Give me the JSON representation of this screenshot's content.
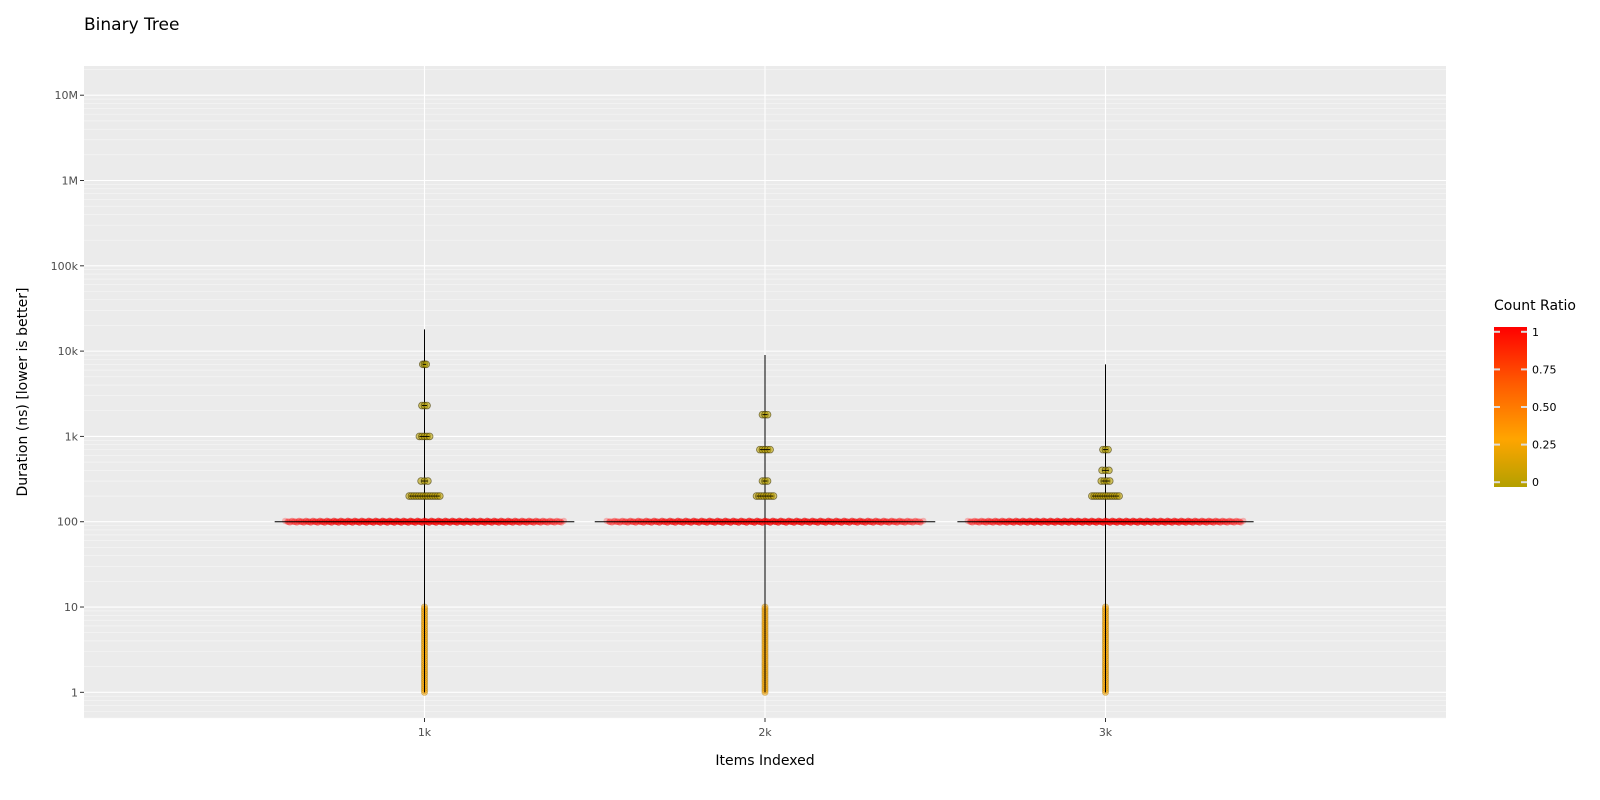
{
  "chart_data": {
    "type": "violin",
    "title": "Binary Tree",
    "xlabel": "Items Indexed",
    "ylabel": "Duration (ns) [lower is better]",
    "y_scale": "log10",
    "ylim": [
      0.5,
      22000000
    ],
    "y_ticks": [
      {
        "value": 1,
        "label": "1"
      },
      {
        "value": 10,
        "label": "10"
      },
      {
        "value": 100,
        "label": "100"
      },
      {
        "value": 1000,
        "label": "1k"
      },
      {
        "value": 10000,
        "label": "10k"
      },
      {
        "value": 100000,
        "label": "100k"
      },
      {
        "value": 1000000,
        "label": "1M"
      },
      {
        "value": 10000000,
        "label": "10M"
      }
    ],
    "categories": [
      "1k",
      "2k",
      "3k"
    ],
    "groups": [
      {
        "category": "1k",
        "max": 18000,
        "clusters": [
          {
            "value": 100,
            "width": 0.88,
            "ratio": 1.0
          },
          {
            "value": 200,
            "width": 0.09,
            "ratio": 0.05
          },
          {
            "value": 300,
            "width": 0.02,
            "ratio": 0.02
          },
          {
            "value": 1000,
            "width": 0.03,
            "ratio": 0.03
          },
          {
            "value": 2300,
            "width": 0.015,
            "ratio": 0.01
          },
          {
            "value": 7000,
            "width": 0.01,
            "ratio": 0.0
          }
        ],
        "low_range": [
          1,
          10
        ]
      },
      {
        "category": "2k",
        "max": 9000,
        "clusters": [
          {
            "value": 100,
            "width": 1.0,
            "ratio": 1.0
          },
          {
            "value": 200,
            "width": 0.05,
            "ratio": 0.05
          },
          {
            "value": 300,
            "width": 0.015,
            "ratio": 0.01
          },
          {
            "value": 700,
            "width": 0.03,
            "ratio": 0.03
          },
          {
            "value": 1800,
            "width": 0.015,
            "ratio": 0.01
          }
        ],
        "low_range": [
          1,
          10
        ]
      },
      {
        "category": "3k",
        "max": 7000,
        "clusters": [
          {
            "value": 100,
            "width": 0.87,
            "ratio": 1.0
          },
          {
            "value": 200,
            "width": 0.08,
            "ratio": 0.05
          },
          {
            "value": 300,
            "width": 0.025,
            "ratio": 0.02
          },
          {
            "value": 400,
            "width": 0.02,
            "ratio": 0.01
          },
          {
            "value": 700,
            "width": 0.015,
            "ratio": 0.01
          }
        ],
        "low_range": [
          1,
          10
        ]
      }
    ],
    "legend": {
      "title": "Count Ratio",
      "placement": "right",
      "ticks": [
        {
          "value": 0,
          "label": "0"
        },
        {
          "value": 0.25,
          "label": "0.25"
        },
        {
          "value": 0.5,
          "label": "0.50"
        },
        {
          "value": 0.75,
          "label": "0.75"
        },
        {
          "value": 1,
          "label": "1"
        }
      ],
      "colors": [
        "#b3a000",
        "#ffa500",
        "#ff4500",
        "#ff0000"
      ]
    },
    "grid": true,
    "colors": {
      "panel": "#ebebeb",
      "grid_major": "#ffffff",
      "low_points": "#f5a300",
      "line": "#000000"
    }
  }
}
